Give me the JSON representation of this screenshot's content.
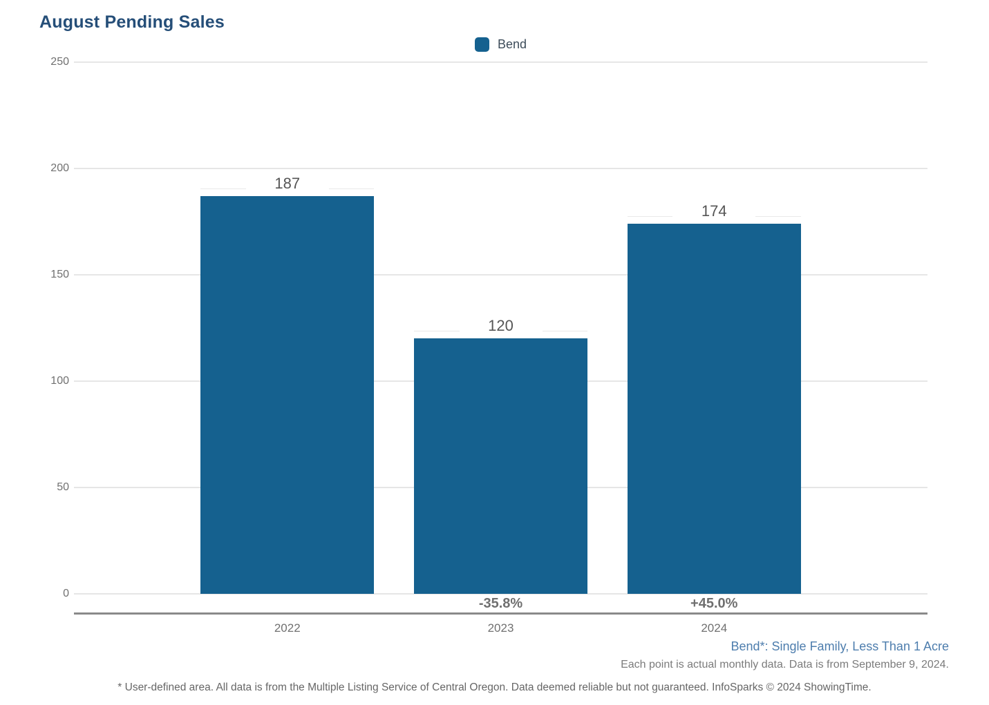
{
  "title": "August Pending Sales",
  "legend": {
    "label": "Bend",
    "swatch_color": "#15618f"
  },
  "chart_data": {
    "type": "bar",
    "title": "August Pending Sales",
    "categories": [
      "2022",
      "2023",
      "2024"
    ],
    "series": [
      {
        "name": "Bend",
        "values": [
          187,
          120,
          174
        ],
        "color": "#15618f"
      }
    ],
    "value_labels": [
      "187",
      "120",
      "174"
    ],
    "pct_change_labels": [
      "",
      "-35.8%",
      "+45.0%"
    ],
    "xlabel": "",
    "ylabel": "",
    "ylim": [
      0,
      250
    ],
    "yticks": [
      0,
      50,
      100,
      150,
      200,
      250
    ],
    "grid": "horizontal",
    "legend_position": "top-center"
  },
  "annotations": {
    "series_note": "Bend*: Single Family, Less Than 1 Acre",
    "data_note": "Each point is actual monthly data. Data is from September 9, 2024.",
    "footer": "* User-defined area. All data is from the Multiple Listing Service of Central Oregon. Data deemed reliable but not guaranteed. InfoSparks © 2024 ShowingTime."
  },
  "colors": {
    "bar": "#15618f",
    "title": "#254e78",
    "grid_line": "#e6e6e6",
    "axis_line": "#8a8a8a",
    "tick_label": "#707070",
    "value_label": "#555555",
    "pct_label": "#6f6f6f",
    "series_note": "#4d7dad",
    "data_note": "#7b7b7b",
    "footer": "#666666"
  }
}
